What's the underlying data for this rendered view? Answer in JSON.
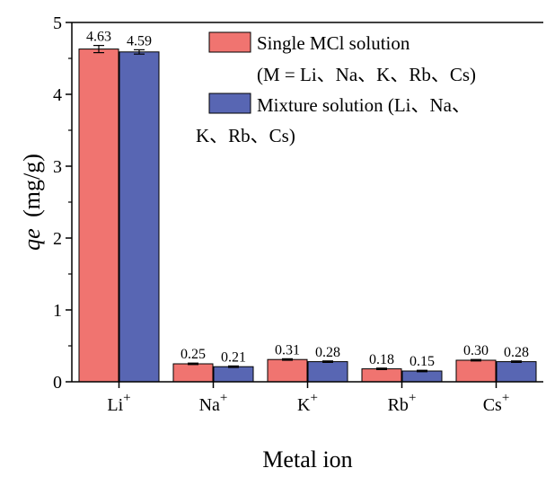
{
  "chart_data": {
    "type": "bar",
    "categories": [
      "Li",
      "Na",
      "K",
      "Rb",
      "Cs"
    ],
    "category_superscript": "+",
    "series": [
      {
        "legend_lines": [
          "Single MCl solution",
          "(M = Li、Na、K、Rb、Cs)"
        ],
        "values": [
          4.63,
          0.25,
          0.31,
          0.18,
          0.3
        ],
        "errors": [
          0.05,
          0.01,
          0.01,
          0.01,
          0.01
        ],
        "labels": [
          "4.63",
          "0.25",
          "0.31",
          "0.18",
          "0.30"
        ],
        "color": "#f07470"
      },
      {
        "legend_lines": [
          "Mixture solution (Li、Na、",
          "K、Rb、Cs)"
        ],
        "values": [
          4.59,
          0.21,
          0.28,
          0.15,
          0.28
        ],
        "errors": [
          0.03,
          0.01,
          0.01,
          0.01,
          0.01
        ],
        "labels": [
          "4.59",
          "0.21",
          "0.28",
          "0.15",
          "0.28"
        ],
        "color": "#5866b3"
      }
    ],
    "xlabel": "Metal ion",
    "ylabel_italic": "qe",
    "ylabel_unit": "(mg/g)",
    "ylim": [
      0,
      5
    ],
    "yticks": [
      "0",
      "1",
      "2",
      "3",
      "4",
      "5"
    ],
    "legend_position": "top-right",
    "grid": false
  }
}
